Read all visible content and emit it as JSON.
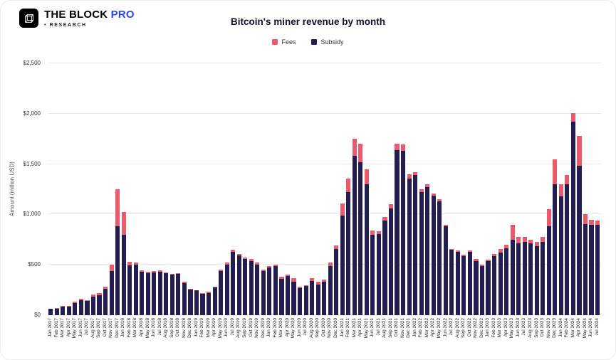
{
  "brand": {
    "title": "THE BLOCK",
    "pro": "PRO",
    "subtitle": "• RESEARCH",
    "accent_color": "#2d46f5",
    "logo_bg": "#000000"
  },
  "chart_data": {
    "type": "bar",
    "stacked": true,
    "title": "Bitcoin's miner revenue by month",
    "xlabel": "",
    "ylabel": "Amount (million USD)",
    "ylim": [
      0,
      2500
    ],
    "y_ticks": [
      0,
      500,
      1000,
      1500,
      2000,
      2500
    ],
    "y_tick_labels": [
      "$0",
      "$500",
      "$1,000",
      "$1,500",
      "$2,000",
      "$2,500"
    ],
    "grid": "horizontal",
    "legend_position": "top-center",
    "categories": [
      "Jan 2017",
      "Feb 2017",
      "Mar 2017",
      "Apr 2017",
      "May 2017",
      "Jun 2017",
      "Jul 2017",
      "Aug 2017",
      "Sep 2017",
      "Oct 2017",
      "Nov 2017",
      "Dec 2017",
      "Jan 2018",
      "Feb 2018",
      "Mar 2018",
      "Apr 2018",
      "May 2018",
      "Jun 2018",
      "Jul 2018",
      "Aug 2018",
      "Sep 2018",
      "Oct 2018",
      "Nov 2018",
      "Dec 2018",
      "Jan 2019",
      "Feb 2019",
      "Mar 2019",
      "Apr 2019",
      "May 2019",
      "Jun 2019",
      "Jul 2019",
      "Aug 2019",
      "Sep 2019",
      "Oct 2019",
      "Nov 2019",
      "Dec 2019",
      "Jan 2020",
      "Feb 2020",
      "Mar 2020",
      "Apr 2020",
      "May 2020",
      "Jun 2020",
      "Jul 2020",
      "Aug 2020",
      "Sep 2020",
      "Oct 2020",
      "Nov 2020",
      "Dec 2020",
      "Jan 2021",
      "Feb 2021",
      "Mar 2021",
      "Apr 2021",
      "May 2021",
      "Jun 2021",
      "Jul 2021",
      "Aug 2021",
      "Sep 2021",
      "Oct 2021",
      "Nov 2021",
      "Dec 2021",
      "Jan 2022",
      "Feb 2022",
      "Mar 2022",
      "Apr 2022",
      "May 2022",
      "Jun 2022",
      "Jul 2022",
      "Aug 2022",
      "Sep 2022",
      "Oct 2022",
      "Nov 2022",
      "Dec 2022",
      "Jan 2023",
      "Feb 2023",
      "Mar 2023",
      "Apr 2023",
      "May 2023",
      "Jun 2023",
      "Jul 2023",
      "Aug 2023",
      "Sep 2023",
      "Oct 2023",
      "Nov 2023",
      "Dec 2023",
      "Jan 2024",
      "Feb 2024",
      "Mar 2024",
      "Apr 2024",
      "May 2024",
      "Jun 2024",
      "Jul 2024"
    ],
    "series": [
      {
        "name": "Fees",
        "color": "#ea5a6c",
        "values": [
          3,
          4,
          6,
          7,
          15,
          20,
          12,
          20,
          18,
          18,
          65,
          370,
          225,
          35,
          20,
          15,
          15,
          12,
          10,
          8,
          8,
          8,
          10,
          8,
          5,
          5,
          8,
          7,
          15,
          20,
          22,
          20,
          17,
          15,
          15,
          15,
          15,
          15,
          20,
          15,
          35,
          15,
          12,
          25,
          25,
          18,
          32,
          32,
          120,
          135,
          165,
          180,
          145,
          40,
          25,
          35,
          45,
          60,
          65,
          45,
          30,
          25,
          28,
          25,
          22,
          15,
          12,
          13,
          15,
          15,
          15,
          12,
          15,
          20,
          40,
          35,
          150,
          65,
          50,
          40,
          45,
          50,
          170,
          250,
          120,
          90,
          85,
          300,
          95,
          55,
          45
        ]
      },
      {
        "name": "Subsidy",
        "color": "#221e52",
        "values": [
          62,
          67,
          85,
          88,
          120,
          145,
          138,
          185,
          200,
          262,
          435,
          880,
          800,
          495,
          505,
          430,
          415,
          425,
          432,
          415,
          405,
          412,
          320,
          252,
          245,
          215,
          222,
          278,
          440,
          505,
          628,
          590,
          558,
          540,
          505,
          440,
          475,
          485,
          360,
          390,
          330,
          270,
          288,
          340,
          305,
          335,
          490,
          660,
          990,
          1220,
          1585,
          1520,
          1300,
          800,
          805,
          940,
          1060,
          1640,
          1630,
          1355,
          1390,
          1225,
          1272,
          1185,
          1128,
          885,
          648,
          632,
          585,
          630,
          540,
          488,
          535,
          585,
          620,
          665,
          750,
          715,
          725,
          710,
          685,
          730,
          880,
          1300,
          1180,
          1300,
          1920,
          1480,
          905,
          895,
          895
        ]
      }
    ]
  }
}
